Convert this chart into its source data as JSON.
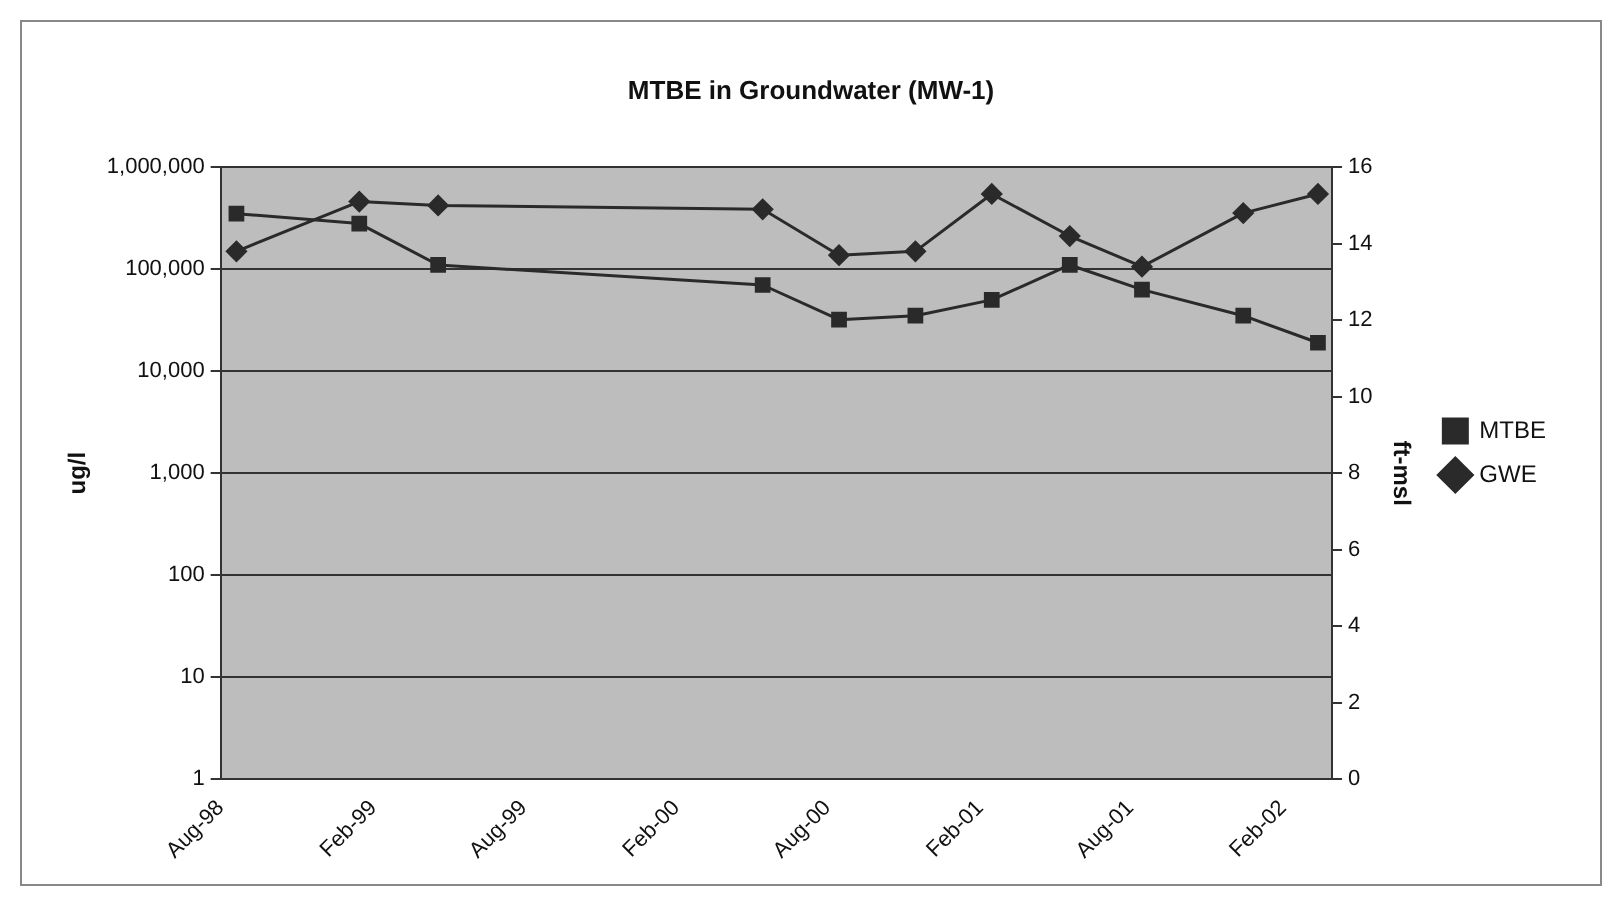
{
  "chart_data": {
    "type": "line",
    "title": "MTBE in Groundwater (MW-1)",
    "ylabel": "ug/l",
    "y2label": "ft-msl",
    "x": [
      "1998-08-20",
      "1999-01-15",
      "1999-04-20",
      "2000-05-15",
      "2000-08-15",
      "2000-11-15",
      "2001-02-15",
      "2001-05-20",
      "2001-08-15",
      "2001-12-15",
      "2002-03-15"
    ],
    "series": [
      {
        "name": "MTBE",
        "color": "#2a2a2a",
        "marker": "square",
        "values": [
          350000,
          280000,
          110000,
          70000,
          32000,
          35000,
          50000,
          110000,
          63000,
          35000,
          19000
        ]
      },
      {
        "name": "GWE",
        "color": "#2a2a2a",
        "marker": "diamond",
        "axis": "y2",
        "values": [
          13.8,
          15.1,
          15.0,
          14.9,
          13.7,
          13.8,
          15.3,
          14.2,
          13.4,
          14.8,
          15.3
        ]
      }
    ],
    "xlim": [
      "1998-08-01",
      "2002-04-01"
    ],
    "xticks": [
      {
        "value": "1998-08-01",
        "label": "Aug-98"
      },
      {
        "value": "1999-02-01",
        "label": "Feb-99"
      },
      {
        "value": "1999-08-01",
        "label": "Aug-99"
      },
      {
        "value": "2000-02-01",
        "label": "Feb-00"
      },
      {
        "value": "2000-08-01",
        "label": "Aug-00"
      },
      {
        "value": "2001-02-01",
        "label": "Feb-01"
      },
      {
        "value": "2001-08-01",
        "label": "Aug-01"
      },
      {
        "value": "2002-02-01",
        "label": "Feb-02"
      }
    ],
    "log": "y",
    "ylim": [
      1,
      1000000
    ],
    "yticks": [
      1,
      10,
      100,
      {
        "value": 1000,
        "label": "1,000"
      },
      {
        "value": 10000,
        "label": "10,000"
      },
      {
        "value": 100000,
        "label": "100,000"
      },
      {
        "value": 1000000,
        "label": "1,000,000"
      }
    ],
    "y2lim": [
      0,
      16
    ],
    "y2ticks": [
      0,
      2,
      4,
      6,
      8,
      10,
      12,
      14,
      16
    ],
    "grid": "y",
    "legend": "right",
    "line_style": "solid"
  }
}
